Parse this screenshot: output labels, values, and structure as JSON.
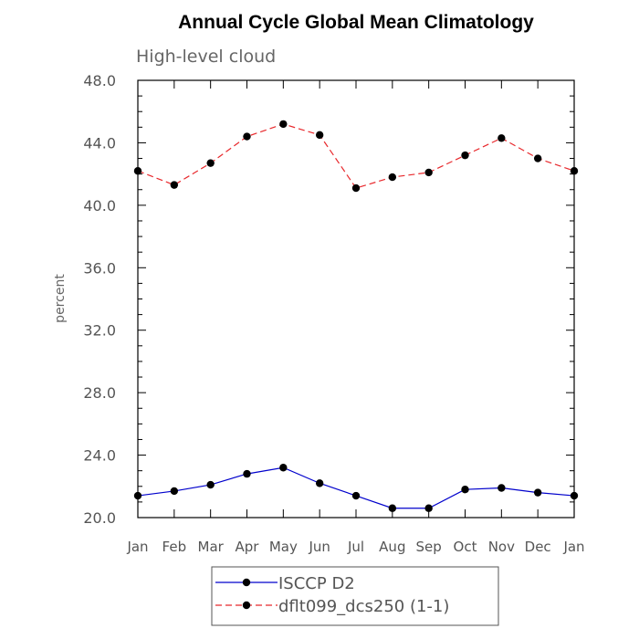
{
  "chart_data": {
    "type": "line",
    "title": "Annual Cycle Global Mean Climatology",
    "subtitle": "High-level cloud",
    "xlabel": "",
    "ylabel": "percent",
    "categories": [
      "Jan",
      "Feb",
      "Mar",
      "Apr",
      "May",
      "Jun",
      "Jul",
      "Aug",
      "Sep",
      "Oct",
      "Nov",
      "Dec",
      "Jan"
    ],
    "ylim": [
      20.0,
      48.0
    ],
    "yticks": [
      "20.0",
      "24.0",
      "28.0",
      "32.0",
      "36.0",
      "40.0",
      "44.0",
      "48.0"
    ],
    "grid": false,
    "legend": "bottom",
    "series": [
      {
        "name": "ISCCP D2",
        "color": "#0000cc",
        "dash": "solid",
        "values": [
          21.4,
          21.7,
          22.1,
          22.8,
          23.2,
          22.2,
          21.4,
          20.6,
          20.6,
          21.8,
          21.9,
          21.6,
          21.4
        ]
      },
      {
        "name": "dflt099_dcs250 (1-1)",
        "color": "#e8282c",
        "dash": "dashed",
        "values": [
          42.2,
          41.3,
          42.7,
          44.4,
          45.2,
          44.5,
          41.1,
          41.8,
          42.1,
          43.2,
          44.3,
          43.0,
          42.2
        ]
      }
    ]
  }
}
